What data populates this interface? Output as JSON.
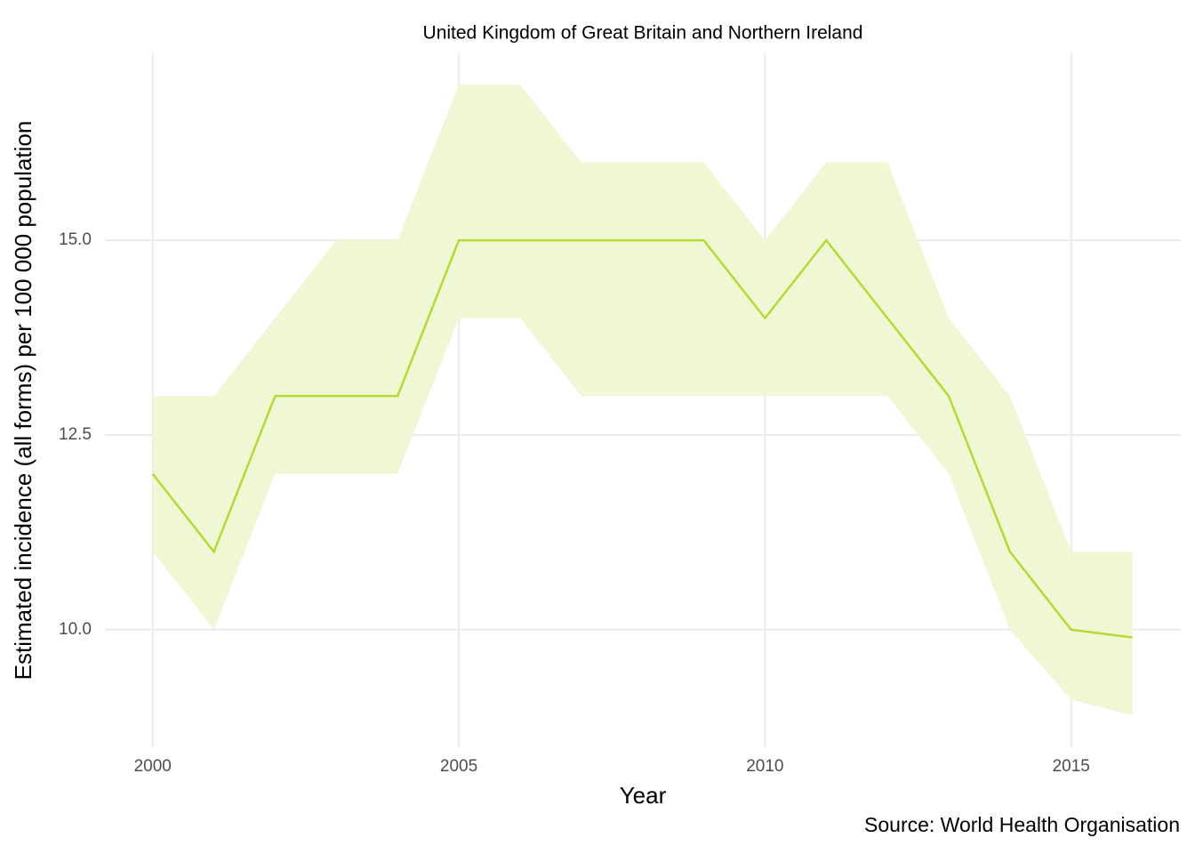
{
  "chart_data": {
    "type": "ribbon-line",
    "title": "United Kingdom of Great Britain and Northern Ireland",
    "x_label": "Year",
    "y_label": "Estimated incidence (all forms) per 100 000 population",
    "caption": "Source: World Health Organisation",
    "x": [
      2000,
      2001,
      2002,
      2003,
      2004,
      2005,
      2006,
      2007,
      2008,
      2009,
      2010,
      2011,
      2012,
      2013,
      2014,
      2015,
      2016
    ],
    "values": [
      12,
      11,
      13,
      13,
      13,
      15,
      15,
      15,
      15,
      15,
      14,
      15,
      14,
      13,
      11,
      10,
      9.9
    ],
    "lower": [
      11,
      10,
      12,
      12,
      12,
      14,
      14,
      13,
      13,
      13,
      13,
      13,
      13,
      12,
      10,
      9.1,
      8.9
    ],
    "upper": [
      13,
      13,
      14,
      15,
      15,
      17,
      17,
      16,
      16,
      16,
      15,
      16,
      16,
      14,
      13,
      11,
      11
    ],
    "color": "#b8d92f",
    "fill_color": "#f0f7d4",
    "xlim": [
      1999.22,
      2016.79
    ],
    "ylim": [
      8.49,
      17.4
    ],
    "xticks": [
      2000,
      2005,
      2010,
      2015
    ],
    "yticks": [
      {
        "value": 10,
        "label": "10.0"
      },
      {
        "value": 12.5,
        "label": "12.5"
      },
      {
        "value": 15,
        "label": "15.0"
      }
    ],
    "grid": true
  }
}
